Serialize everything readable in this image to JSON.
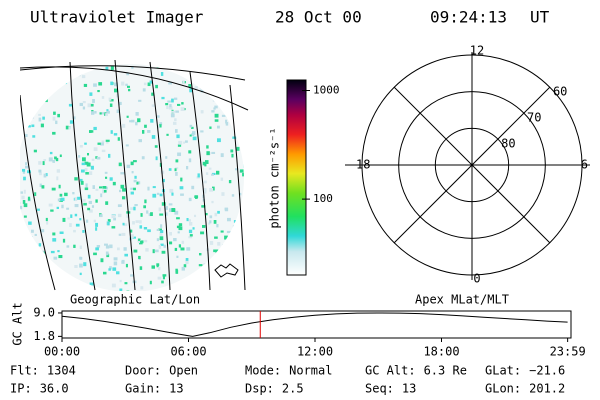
{
  "header": {
    "title": "Ultraviolet Imager",
    "date": "28 Oct 00",
    "time": "09:24:13",
    "time_zone": "UT"
  },
  "map_caption": "Geographic Lat/Lon",
  "polar": {
    "caption": "Apex MLat/MLT",
    "lat_rings": [
      80,
      70,
      60
    ],
    "mlt_labels": [
      12,
      18,
      6,
      0
    ]
  },
  "colorbar": {
    "label": "photon cm⁻²s⁻¹",
    "clim": [
      20,
      1250
    ],
    "log": true,
    "ticks": [
      1000,
      100
    ]
  },
  "altitude_plot": {
    "ylabel": "GC Alt",
    "xlim": [
      0,
      24
    ],
    "ylim": [
      1.3,
      9.6
    ],
    "yticks": [
      {
        "value": 9.0,
        "label": "9.0"
      },
      {
        "value": 1.8,
        "label": "1.8"
      }
    ],
    "xticks": [
      {
        "value": 0,
        "label": "00:00"
      },
      {
        "value": 6,
        "label": "06:00"
      },
      {
        "value": 12,
        "label": "12:00"
      },
      {
        "value": 18,
        "label": "18:00"
      },
      {
        "value": 23.983,
        "label": "23:59"
      }
    ],
    "x": [
      0,
      1,
      2,
      3,
      4,
      5,
      6,
      6.2,
      7,
      8,
      9,
      10,
      11,
      12,
      13,
      14,
      15,
      16,
      17,
      18,
      19,
      20,
      21,
      22,
      23,
      23.983
    ],
    "values": [
      8.0,
      7.3,
      6.4,
      5.4,
      4.3,
      3.1,
      2.0,
      1.8,
      2.9,
      4.6,
      5.9,
      6.9,
      7.7,
      8.3,
      8.7,
      8.95,
      9.0,
      8.95,
      8.8,
      8.5,
      8.1,
      7.7,
      7.3,
      6.9,
      6.5,
      6.2
    ]
  },
  "info": [
    [
      {
        "label": "Flt:",
        "value": "1304"
      },
      {
        "label": "Door:",
        "value": "Open"
      },
      {
        "label": "Mode:",
        "value": "Normal"
      },
      {
        "label": "GC Alt:",
        "value": "6.3 Re"
      },
      {
        "label": "GLat:",
        "value": "−21.6"
      }
    ],
    [
      {
        "label": "IP:",
        "value": "36.0"
      },
      {
        "label": "Gain:",
        "value": "13"
      },
      {
        "label": "Dsp:",
        "value": "2.5"
      },
      {
        "label": "Seq:",
        "value": "13"
      },
      {
        "label": "GLon:",
        "value": "201.2"
      }
    ]
  ]
}
